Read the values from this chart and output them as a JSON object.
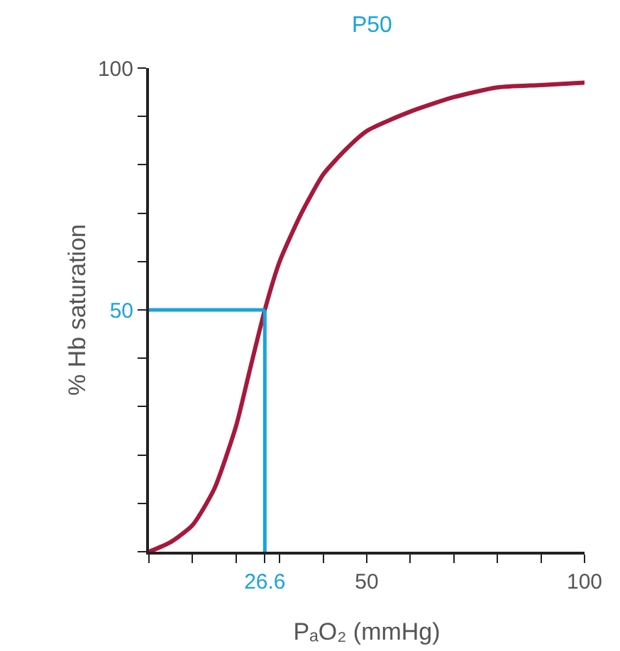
{
  "chart_data": {
    "type": "line",
    "title": "P50",
    "xlabel": "PₐO₂ (mmHg)",
    "ylabel": "% Hb saturation",
    "x": [
      0,
      5,
      10,
      15,
      20,
      23,
      26.6,
      30,
      35,
      40,
      45,
      50,
      60,
      70,
      80,
      90,
      100
    ],
    "series": [
      {
        "color": "#a6193c",
        "values": [
          0,
          2,
          5.5,
          13,
          26,
          37,
          50,
          60,
          70,
          78,
          83,
          87,
          91,
          94,
          96,
          96.5,
          97
        ]
      }
    ],
    "xlim": [
      0,
      100
    ],
    "ylim": [
      0,
      100
    ],
    "xticks": [
      {
        "value": 0,
        "label": null
      },
      {
        "value": 10,
        "label": null
      },
      {
        "value": 20,
        "label": null
      },
      26.6,
      {
        "value": 30,
        "label": null
      },
      {
        "value": 40,
        "label": null
      },
      50,
      {
        "value": 60,
        "label": null
      },
      {
        "value": 70,
        "label": null
      },
      {
        "value": 80,
        "label": null
      },
      {
        "value": 90,
        "label": null
      },
      100
    ],
    "yticks": [
      {
        "value": 0,
        "label": null
      },
      {
        "value": 10,
        "label": null
      },
      {
        "value": 20,
        "label": null
      },
      {
        "value": 30,
        "label": null
      },
      {
        "value": 40,
        "label": null
      },
      50,
      {
        "value": 60,
        "label": null
      },
      {
        "value": 70,
        "label": null
      },
      {
        "value": 80,
        "label": null
      },
      {
        "value": 90,
        "label": null
      },
      100
    ],
    "ref_lines": [
      {
        "axis": "x",
        "value": 26.6,
        "color": "#1aa3dc"
      },
      {
        "axis": "y",
        "value": 50,
        "color": "#1aa3dc"
      }
    ],
    "grid": false,
    "marker": "none",
    "line_style": "solid"
  }
}
